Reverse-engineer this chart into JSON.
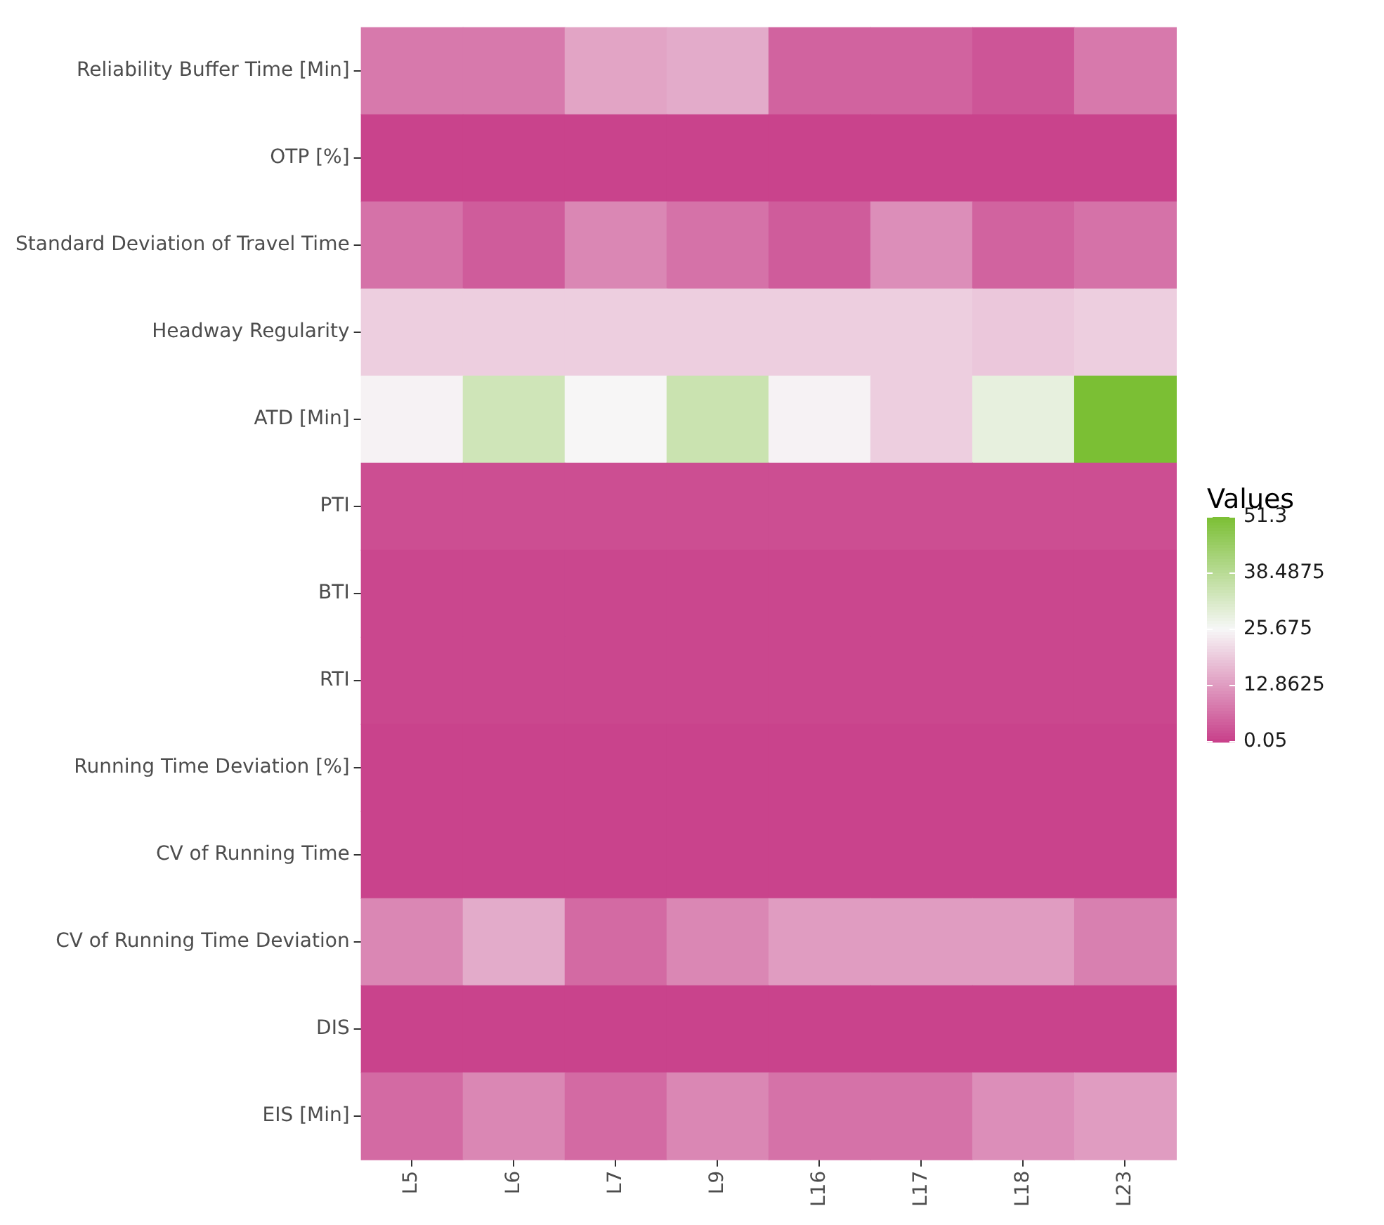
{
  "chart_data": {
    "type": "heatmap",
    "legend_title": "Values",
    "categories": [
      "L5",
      "L6",
      "L7",
      "L9",
      "L16",
      "L17",
      "L18",
      "L23"
    ],
    "y_categories": [
      "Reliability Buffer Time [Min]",
      "OTP [%]",
      "Standard Deviation of Travel Time",
      "Headway Regularity",
      "ATD [Min]",
      "PTI",
      "BTI",
      "RTI",
      "Running Time Deviation [%]",
      "CV of Running Time",
      "CV of Running Time Deviation",
      "DIS",
      "EIS [Min]"
    ],
    "cells": [
      [
        8,
        8,
        14,
        15,
        5,
        5,
        3,
        8
      ],
      [
        0.5,
        0.5,
        0.5,
        0.5,
        0.5,
        0.5,
        0.5,
        0.5
      ],
      [
        7,
        4,
        10,
        7,
        4,
        11,
        5,
        7
      ],
      [
        20,
        20,
        20,
        20,
        20,
        20,
        19,
        20
      ],
      [
        25,
        34,
        25.5,
        35,
        25,
        20,
        29,
        51.3
      ],
      [
        2,
        2,
        2,
        2,
        2,
        2,
        2,
        2
      ],
      [
        1,
        1,
        1,
        1,
        1,
        1,
        1,
        1
      ],
      [
        1,
        1,
        1,
        1,
        1,
        1,
        1,
        1
      ],
      [
        0.5,
        0.5,
        0.5,
        0.5,
        0.5,
        0.5,
        0.5,
        0.5
      ],
      [
        0.5,
        0.5,
        0.5,
        0.5,
        0.5,
        0.5,
        0.5,
        0.5
      ],
      [
        10,
        15,
        6,
        10,
        13,
        13,
        13,
        9
      ],
      [
        0.5,
        0.5,
        0.5,
        0.5,
        0.5,
        0.5,
        0.5,
        0.5
      ],
      [
        6,
        10,
        6,
        10,
        7,
        7,
        11,
        13
      ]
    ],
    "clim": [
      0.05,
      51.3
    ],
    "cticks": [
      0.05,
      12.8625,
      25.675,
      38.4875,
      51.3
    ]
  }
}
